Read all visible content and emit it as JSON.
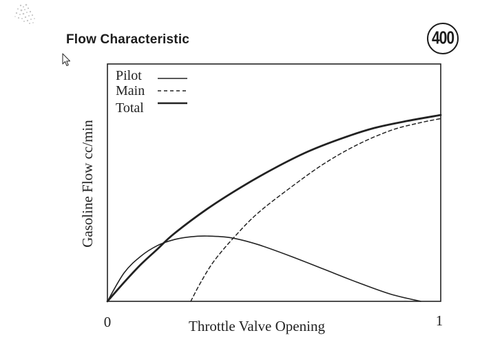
{
  "header": {
    "title": "Flow Characteristic",
    "page_number": "400"
  },
  "colors": {
    "ink": "#222222",
    "background": "#ffffff"
  },
  "icons": {
    "cursor": "cursor-arrow-icon"
  },
  "chart_data": {
    "type": "line",
    "title": "",
    "xlabel": "Throttle Valve Opening",
    "ylabel": "Gasoline Flow cc/min",
    "xlim": [
      0,
      1
    ],
    "ylim": [
      0,
      1
    ],
    "x_ticks": [
      "0",
      "1"
    ],
    "y_ticks": [],
    "grid": false,
    "legend_position": "top-left",
    "series": [
      {
        "name": "Pilot",
        "line_style": "solid-thin",
        "points": [
          [
            0,
            0
          ],
          [
            0.05,
            0.12
          ],
          [
            0.1,
            0.19
          ],
          [
            0.15,
            0.235
          ],
          [
            0.2,
            0.26
          ],
          [
            0.25,
            0.272
          ],
          [
            0.3,
            0.275
          ],
          [
            0.37,
            0.268
          ],
          [
            0.45,
            0.24
          ],
          [
            0.55,
            0.19
          ],
          [
            0.65,
            0.135
          ],
          [
            0.75,
            0.08
          ],
          [
            0.85,
            0.03
          ],
          [
            0.94,
            0.0
          ]
        ]
      },
      {
        "name": "Main",
        "line_style": "dashed",
        "points": [
          [
            0.25,
            0.0
          ],
          [
            0.28,
            0.08
          ],
          [
            0.32,
            0.17
          ],
          [
            0.38,
            0.27
          ],
          [
            0.45,
            0.37
          ],
          [
            0.55,
            0.48
          ],
          [
            0.65,
            0.58
          ],
          [
            0.75,
            0.66
          ],
          [
            0.85,
            0.72
          ],
          [
            0.93,
            0.75
          ],
          [
            1.0,
            0.77
          ]
        ]
      },
      {
        "name": "Total",
        "line_style": "solid-thick",
        "points": [
          [
            0,
            0
          ],
          [
            0.05,
            0.08
          ],
          [
            0.1,
            0.155
          ],
          [
            0.15,
            0.22
          ],
          [
            0.2,
            0.285
          ],
          [
            0.3,
            0.39
          ],
          [
            0.4,
            0.48
          ],
          [
            0.5,
            0.56
          ],
          [
            0.6,
            0.63
          ],
          [
            0.7,
            0.685
          ],
          [
            0.8,
            0.73
          ],
          [
            0.9,
            0.76
          ],
          [
            1.0,
            0.785
          ]
        ]
      }
    ]
  }
}
